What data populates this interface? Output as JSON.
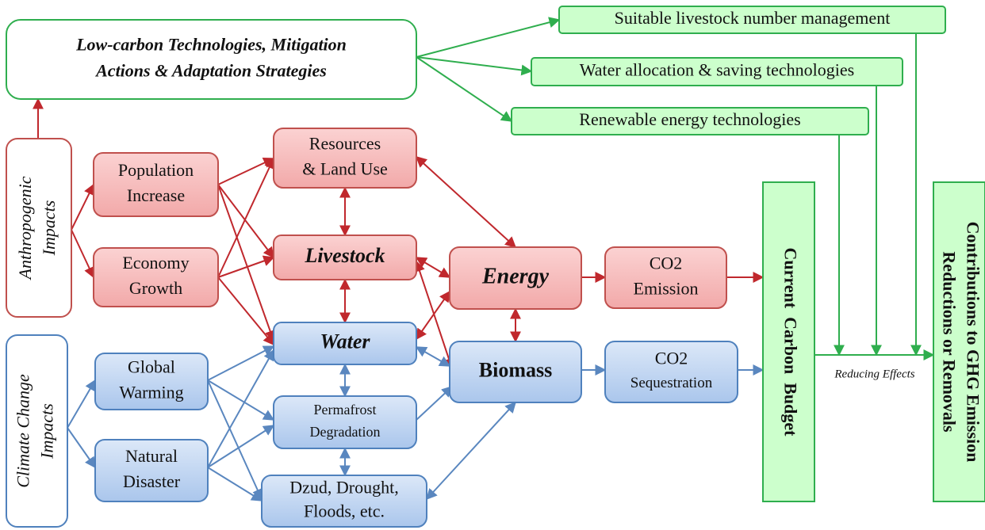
{
  "nodes": [
    {
      "lines": [
        "Low-carbon Technologies, Mitigation",
        "Actions & Adaptation Strategies"
      ]
    },
    {
      "lines": [
        "Suitable livestock number management"
      ]
    },
    {
      "lines": [
        "Water allocation & saving technologies"
      ]
    },
    {
      "lines": [
        "Renewable energy technologies"
      ]
    },
    {
      "lines": [
        "Anthropogenic",
        "Impacts"
      ]
    },
    {
      "lines": [
        "Climate Change",
        "Impacts"
      ]
    },
    {
      "lines": [
        "Population",
        "Increase"
      ]
    },
    {
      "lines": [
        "Economy",
        "Growth"
      ]
    },
    {
      "lines": [
        "Resources",
        "& Land Use"
      ]
    },
    {
      "lines": [
        "Livestock"
      ]
    },
    {
      "lines": [
        "Energy"
      ]
    },
    {
      "lines": [
        "CO2",
        "Emission"
      ]
    },
    {
      "lines": [
        "Water"
      ]
    },
    {
      "lines": [
        "Biomass"
      ]
    },
    {
      "lines": [
        "CO2",
        "Sequestration"
      ]
    },
    {
      "lines": [
        "Permafrost",
        "Degradation"
      ]
    },
    {
      "lines": [
        "Dzud, Drought,",
        "Floods, etc."
      ]
    },
    {
      "lines": [
        "Global",
        "Warming"
      ]
    },
    {
      "lines": [
        "Natural",
        "Disaster"
      ]
    },
    {
      "lines": [
        "Current  Carbon  Budget"
      ]
    },
    {
      "lines": [
        "Contributions to GHG Emission",
        "Reductions or Removals"
      ]
    }
  ],
  "annotation": "Reducing Effects"
}
